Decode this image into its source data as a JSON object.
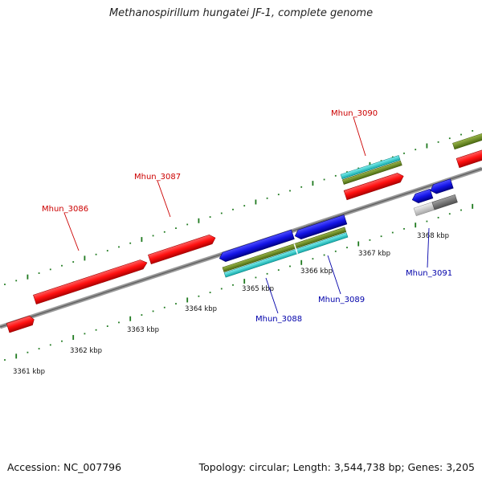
{
  "title": "Methanospirillum hungatei JF-1, complete genome",
  "footer": {
    "accession": "Accession: NC_007796",
    "summary": "Topology: circular; Length: 3,544,738 bp; Genes: 3,205"
  },
  "colors": {
    "forward_cds": "#ff1010",
    "reverse_cds": "#1414e6",
    "olive_feature": "#6b8e23",
    "cyan_feature": "#18cccc",
    "grey_light": "#c8c8c8",
    "grey_dark": "#707070",
    "backbone": "#808080",
    "tick": "#1f7a1f",
    "forward_label": "#cc0000",
    "reverse_label": "#0000aa"
  },
  "scale_labels": [
    "3361 kbp",
    "3362 kbp",
    "3363 kbp",
    "3364 kbp",
    "3365 kbp",
    "3366 kbp",
    "3367 kbp",
    "3368 kbp"
  ],
  "gene_labels": {
    "forward": [
      "Mhun_3086",
      "Mhun_3087",
      "Mhun_3090"
    ],
    "reverse": [
      "Mhun_3088",
      "Mhun_3089",
      "Mhun_3091"
    ]
  }
}
